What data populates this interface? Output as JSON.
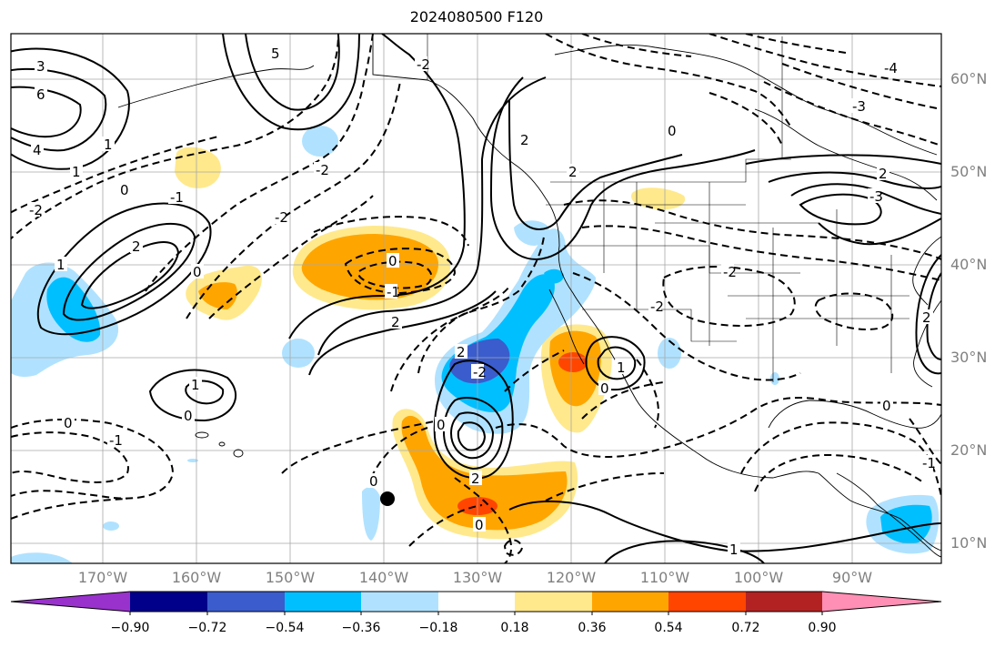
{
  "title": "2024080500 F120",
  "map": {
    "lat_labels": [
      "60°N",
      "50°N",
      "40°N",
      "30°N",
      "20°N",
      "10°N"
    ],
    "lon_labels": [
      "170°W",
      "160°W",
      "150°W",
      "140°W",
      "130°W",
      "120°W",
      "110°W",
      "100°W",
      "90°W"
    ],
    "contour_labels": [
      "3",
      "6",
      "4",
      "1",
      "5",
      "2",
      "0",
      "-1",
      "-2",
      "-3",
      "-4"
    ],
    "marker": "black-dot"
  },
  "colorbar": {
    "ticks": [
      "−0.90",
      "−0.72",
      "−0.54",
      "−0.36",
      "−0.18",
      "0.18",
      "0.36",
      "0.54",
      "0.72",
      "0.90"
    ],
    "colors": [
      "#9932cc",
      "#00008b",
      "#3a5ccc",
      "#00bfff",
      "#b0e2ff",
      "#ffffff",
      "#ffe98c",
      "#ffa500",
      "#ff4500",
      "#b22222",
      "#ff8fb4"
    ]
  },
  "chart_data": {
    "type": "heatmap",
    "title": "2024080500 F120",
    "xlabel": "",
    "ylabel": "",
    "x_ticks": [
      "170°W",
      "160°W",
      "150°W",
      "140°W",
      "130°W",
      "120°W",
      "110°W",
      "100°W",
      "90°W"
    ],
    "y_ticks": [
      "60°N",
      "50°N",
      "40°N",
      "30°N",
      "20°N",
      "10°N"
    ],
    "colorbar_levels": [
      -0.9,
      -0.72,
      -0.54,
      -0.36,
      -0.18,
      0.18,
      0.36,
      0.54,
      0.72,
      0.9
    ],
    "grid": true
  }
}
